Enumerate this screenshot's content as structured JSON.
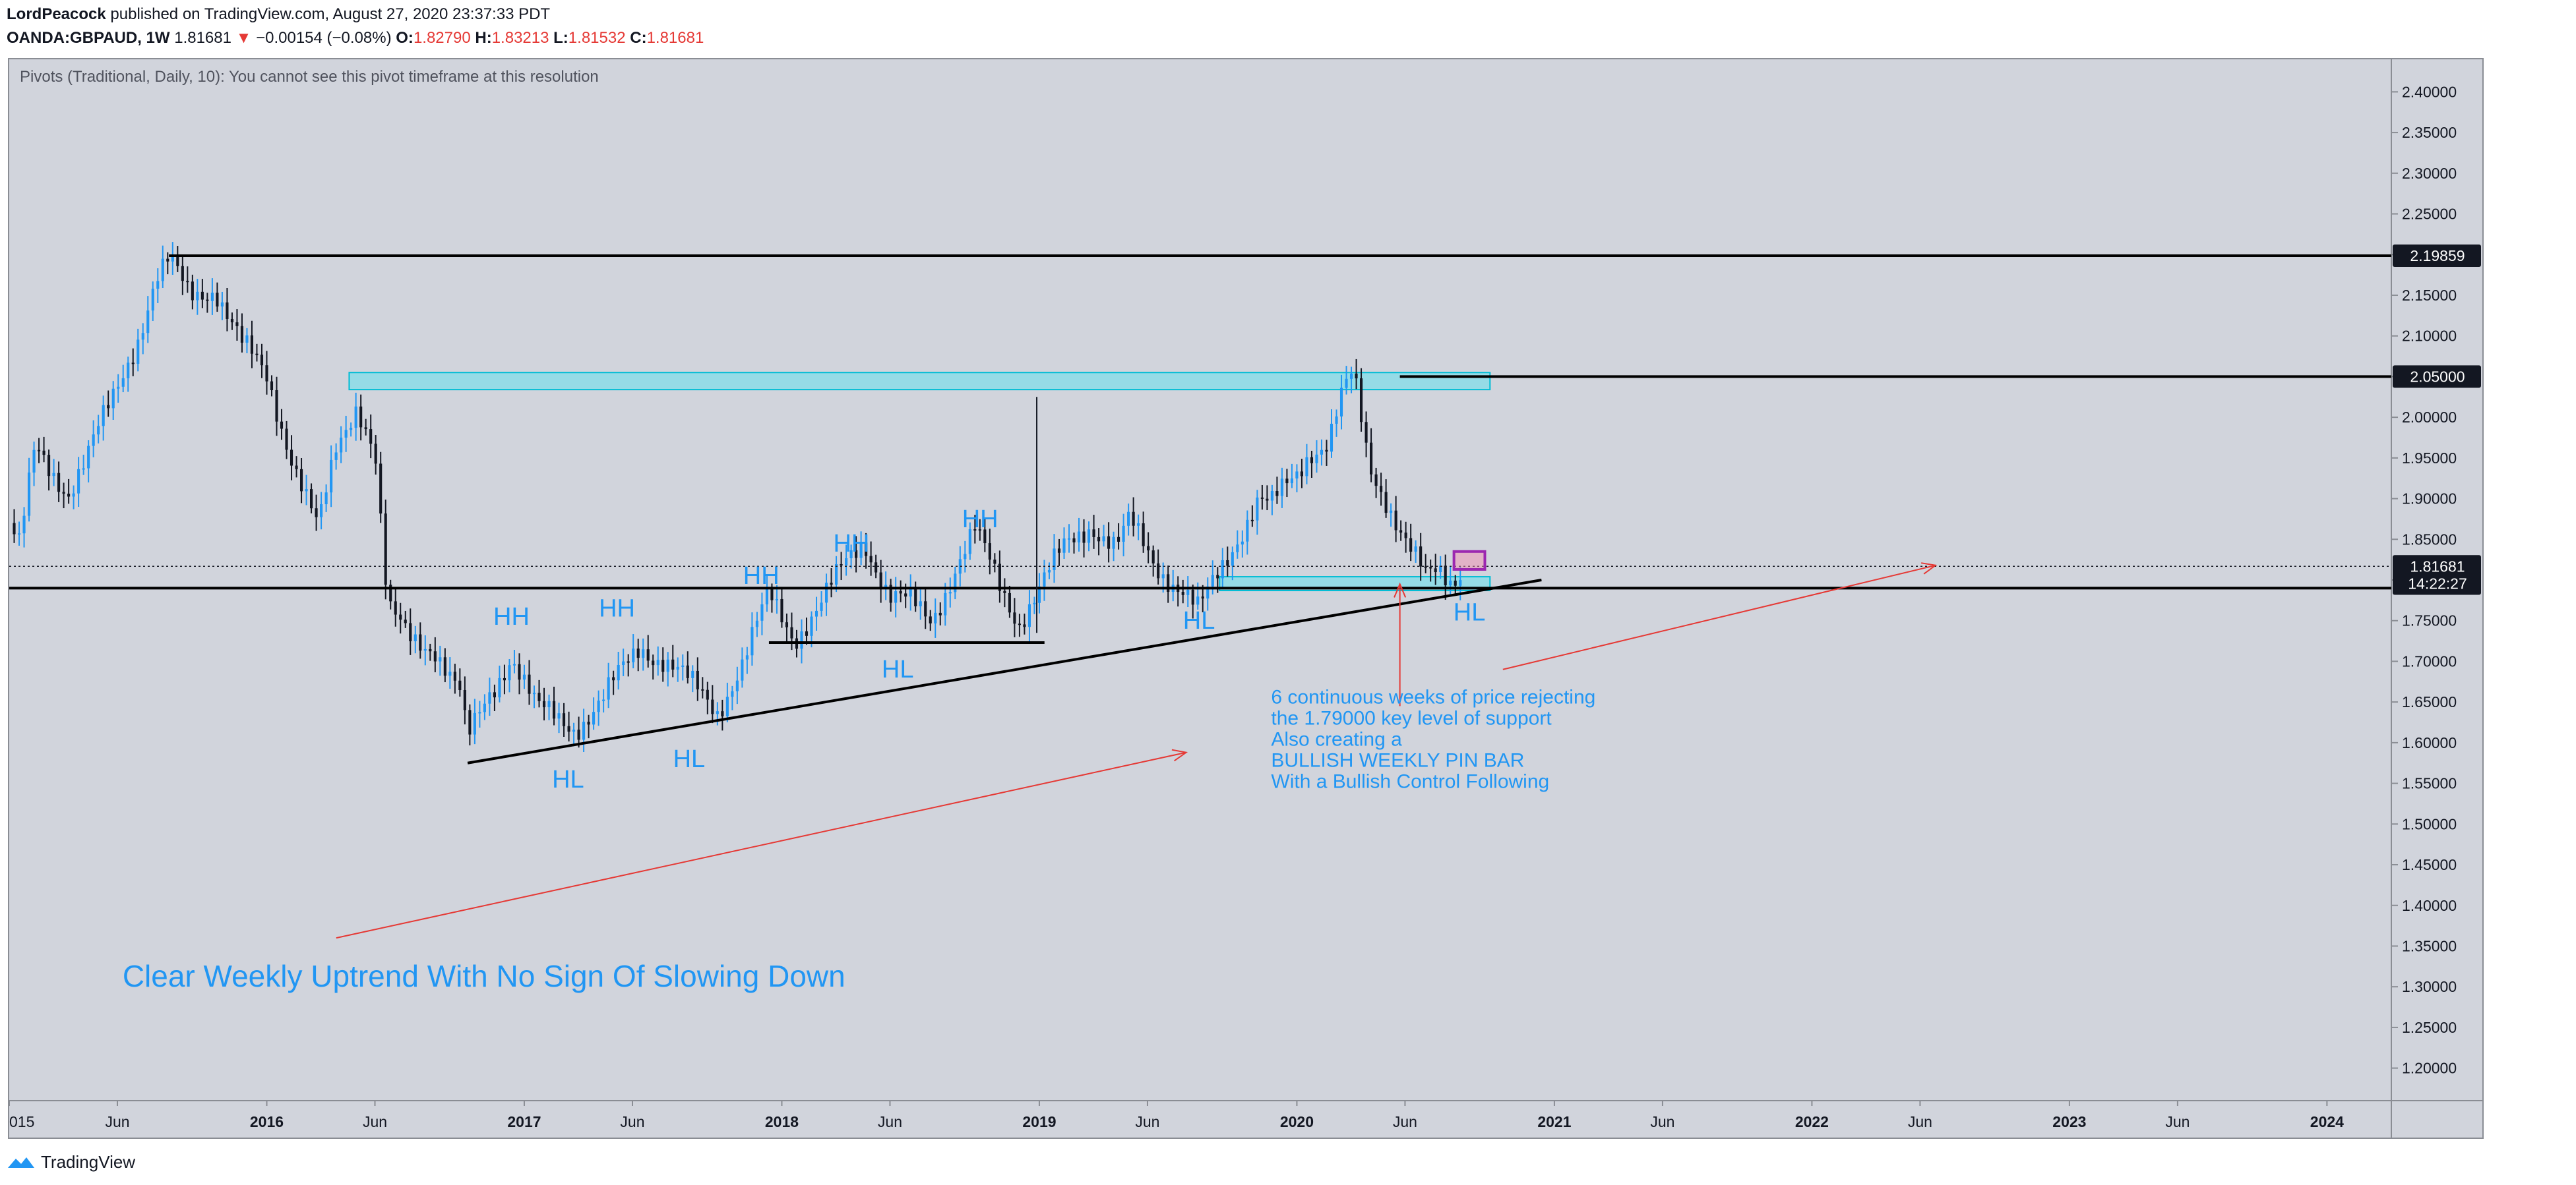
{
  "header": {
    "author": "LordPeacock",
    "published": "published on TradingView.com, August 27, 2020 23:37:33 PDT",
    "symbol": "OANDA:GBPAUD, 1W",
    "last": "1.81681",
    "change": "−0.00154 (−0.08%)",
    "o_label": "O:",
    "o_value": "1.82790",
    "h_label": "H:",
    "h_value": "1.83213",
    "l_label": "L:",
    "l_value": "1.81532",
    "c_label": "C:",
    "c_value": "1.81681"
  },
  "footer": {
    "brand": "TradingView"
  },
  "colors": {
    "up": "#2196f3",
    "down": "#131722",
    "zone": "#80deea",
    "annotation": "#2196f3",
    "arrow": "#e53935",
    "background": "#d1d4dc"
  },
  "chart_data": {
    "type": "candlestick",
    "indicator_text": "Pivots (Traditional, Daily, 10): You cannot see this pivot timeframe at this resolution",
    "x_ticks": [
      "015",
      "Jun",
      "2016",
      "Jun",
      "2017",
      "Jun",
      "2018",
      "Jun",
      "2019",
      "Jun",
      "2020",
      "Jun",
      "2021",
      "Jun",
      "2022",
      "Jun",
      "2023",
      "Jun",
      "2024"
    ],
    "x_tick_times": [
      2015.0,
      2015.42,
      2016.0,
      2016.42,
      2017.0,
      2017.42,
      2018.0,
      2018.42,
      2019.0,
      2019.42,
      2020.0,
      2020.42,
      2021.0,
      2021.42,
      2022.0,
      2022.42,
      2023.0,
      2023.42,
      2024.0
    ],
    "x_range": [
      2015.0,
      2024.25
    ],
    "y_ticks": [
      "2.40000",
      "2.35000",
      "2.30000",
      "2.25000",
      "2.20000",
      "2.15000",
      "2.10000",
      "2.05000",
      "2.00000",
      "1.95000",
      "1.90000",
      "1.85000",
      "1.80000",
      "1.75000",
      "1.70000",
      "1.65000",
      "1.60000",
      "1.55000",
      "1.50000",
      "1.45000",
      "1.40000",
      "1.35000",
      "1.30000",
      "1.25000",
      "1.20000"
    ],
    "y_range": [
      1.16,
      2.44
    ],
    "price_labels": [
      {
        "text": "2.19859",
        "value": 2.19859
      },
      {
        "text": "2.05000",
        "value": 2.05
      },
      {
        "text": "1.81681",
        "value": 1.81681
      },
      {
        "text": "14:22:27",
        "value": 1.7955
      }
    ],
    "close_path": [
      {
        "t": 2015.0,
        "v": 1.87
      },
      {
        "t": 2015.04,
        "v": 1.84
      },
      {
        "t": 2015.1,
        "v": 1.96
      },
      {
        "t": 2015.15,
        "v": 1.94
      },
      {
        "t": 2015.23,
        "v": 1.91
      },
      {
        "t": 2015.3,
        "v": 1.95
      },
      {
        "t": 2015.4,
        "v": 2.02
      },
      {
        "t": 2015.5,
        "v": 2.1
      },
      {
        "t": 2015.57,
        "v": 2.17
      },
      {
        "t": 2015.62,
        "v": 2.19
      },
      {
        "t": 2015.7,
        "v": 2.15
      },
      {
        "t": 2015.8,
        "v": 2.16
      },
      {
        "t": 2015.9,
        "v": 2.09
      },
      {
        "t": 2016.0,
        "v": 2.05
      },
      {
        "t": 2016.1,
        "v": 1.95
      },
      {
        "t": 2016.2,
        "v": 1.86
      },
      {
        "t": 2016.27,
        "v": 1.96
      },
      {
        "t": 2016.35,
        "v": 2.02
      },
      {
        "t": 2016.42,
        "v": 1.96
      },
      {
        "t": 2016.47,
        "v": 1.76
      },
      {
        "t": 2016.55,
        "v": 1.73
      },
      {
        "t": 2016.65,
        "v": 1.72
      },
      {
        "t": 2016.75,
        "v": 1.66
      },
      {
        "t": 2016.78,
        "v": 1.6
      },
      {
        "t": 2016.85,
        "v": 1.65
      },
      {
        "t": 2016.95,
        "v": 1.71
      },
      {
        "t": 2017.05,
        "v": 1.64
      },
      {
        "t": 2017.2,
        "v": 1.62
      },
      {
        "t": 2017.3,
        "v": 1.65
      },
      {
        "t": 2017.45,
        "v": 1.72
      },
      {
        "t": 2017.55,
        "v": 1.7
      },
      {
        "t": 2017.65,
        "v": 1.67
      },
      {
        "t": 2017.75,
        "v": 1.64
      },
      {
        "t": 2017.85,
        "v": 1.7
      },
      {
        "t": 2017.95,
        "v": 1.78
      },
      {
        "t": 2018.05,
        "v": 1.73
      },
      {
        "t": 2018.15,
        "v": 1.77
      },
      {
        "t": 2018.25,
        "v": 1.82
      },
      {
        "t": 2018.32,
        "v": 1.85
      },
      {
        "t": 2018.42,
        "v": 1.78
      },
      {
        "t": 2018.5,
        "v": 1.77
      },
      {
        "t": 2018.58,
        "v": 1.75
      },
      {
        "t": 2018.68,
        "v": 1.82
      },
      {
        "t": 2018.75,
        "v": 1.86
      },
      {
        "t": 2018.85,
        "v": 1.79
      },
      {
        "t": 2018.92,
        "v": 1.75
      },
      {
        "t": 2019.0,
        "v": 1.79
      },
      {
        "t": 2019.1,
        "v": 1.84
      },
      {
        "t": 2019.2,
        "v": 1.87
      },
      {
        "t": 2019.3,
        "v": 1.84
      },
      {
        "t": 2019.35,
        "v": 1.87
      },
      {
        "t": 2019.45,
        "v": 1.82
      },
      {
        "t": 2019.55,
        "v": 1.79
      },
      {
        "t": 2019.62,
        "v": 1.76
      },
      {
        "t": 2019.7,
        "v": 1.81
      },
      {
        "t": 2019.78,
        "v": 1.86
      },
      {
        "t": 2019.85,
        "v": 1.9
      },
      {
        "t": 2019.9,
        "v": 1.89
      },
      {
        "t": 2020.0,
        "v": 1.93
      },
      {
        "t": 2020.05,
        "v": 1.96
      },
      {
        "t": 2020.12,
        "v": 1.97
      },
      {
        "t": 2020.18,
        "v": 2.03
      },
      {
        "t": 2020.22,
        "v": 2.05
      },
      {
        "t": 2020.28,
        "v": 1.94
      },
      {
        "t": 2020.35,
        "v": 1.9
      },
      {
        "t": 2020.42,
        "v": 1.85
      },
      {
        "t": 2020.5,
        "v": 1.8
      },
      {
        "t": 2020.55,
        "v": 1.81
      },
      {
        "t": 2020.6,
        "v": 1.8
      },
      {
        "t": 2020.65,
        "v": 1.82
      }
    ],
    "horizontal_lines": [
      {
        "value": 2.19859,
        "from": 2015.62
      },
      {
        "value": 2.05,
        "from": 2020.4
      },
      {
        "value": 1.79,
        "from": 2015.0
      }
    ],
    "zones": [
      {
        "t0": 2016.32,
        "t1": 2020.75,
        "v0": 2.034,
        "v1": 2.055
      },
      {
        "t0": 2019.7,
        "t1": 2020.75,
        "v0": 1.787,
        "v1": 1.804
      }
    ],
    "segments": [
      {
        "t0": 2016.78,
        "v0": 1.575,
        "t1": 2020.95,
        "v1": 1.8
      },
      {
        "t0": 2017.95,
        "v0": 1.723,
        "t1": 2019.02,
        "v1": 1.723
      }
    ],
    "spike": {
      "t": 2018.99,
      "v0": 1.735,
      "v1": 2.025
    },
    "labels": [
      {
        "text": "HH",
        "t": 2016.95,
        "v": 1.745
      },
      {
        "text": "HH",
        "t": 2017.36,
        "v": 1.755
      },
      {
        "text": "HH",
        "t": 2017.92,
        "v": 1.795
      },
      {
        "text": "HH",
        "t": 2018.27,
        "v": 1.835
      },
      {
        "text": "HH",
        "t": 2018.77,
        "v": 1.865
      },
      {
        "text": "HL",
        "t": 2017.17,
        "v": 1.545
      },
      {
        "text": "HL",
        "t": 2017.64,
        "v": 1.57
      },
      {
        "text": "HL",
        "t": 2018.45,
        "v": 1.68
      },
      {
        "text": "HL",
        "t": 2019.62,
        "v": 1.74
      },
      {
        "text": "HL",
        "t": 2020.67,
        "v": 1.75
      }
    ],
    "arrows": [
      {
        "t0": 2016.27,
        "v0": 1.36,
        "t1": 2019.57,
        "v1": 1.588
      },
      {
        "t0": 2020.4,
        "v0": 1.645,
        "t1": 2020.4,
        "v1": 1.795
      },
      {
        "t0": 2020.8,
        "v0": 1.69,
        "t1": 2022.48,
        "v1": 1.818
      }
    ],
    "note_lines": [
      "6 continuous weeks of price rejecting",
      "the 1.79000 key level of support",
      "Also creating a",
      "BULLISH WEEKLY PIN BAR",
      "With a Bullish Control Following"
    ],
    "note_pos": {
      "t": 2019.9,
      "v": 1.648
    },
    "big_text": "Clear Weekly Uptrend With No Sign Of Slowing Down",
    "big_text_pos": {
      "t": 2015.44,
      "v": 1.3
    },
    "marker_box": {
      "t0": 2020.61,
      "t1": 2020.73,
      "v0": 1.813,
      "v1": 1.835
    }
  }
}
